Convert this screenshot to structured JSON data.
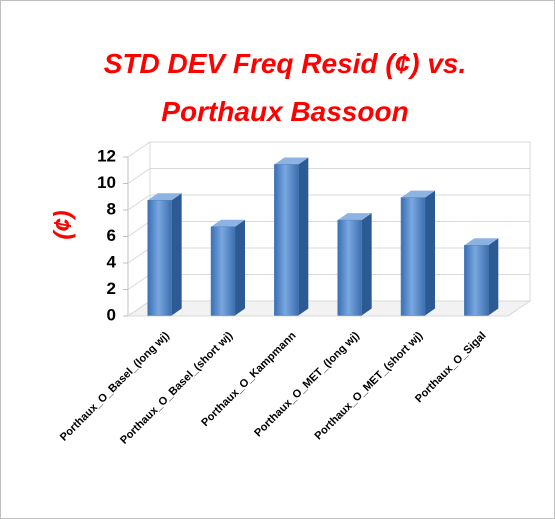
{
  "chart_data": {
    "type": "bar3d",
    "title": "STD DEV Freq Resid (¢) vs. Porthaux Bassoon",
    "y_label": "(¢)",
    "categories": [
      "Porthaux_O_Basel_(long wj)",
      "Porthaux_O_Basel_(short wj)",
      "Porthaux_O_Kampmann",
      "Porthaux_O_MET_(long wj)",
      "Porthaux_O_MET_(short wj)",
      "Porthaux_O_Sigal"
    ],
    "values": [
      8.7,
      6.7,
      11.4,
      7.2,
      8.9,
      5.3
    ],
    "color": "#4f81bd",
    "ylim": [
      0,
      12
    ],
    "yticks": [
      0,
      2,
      4,
      6,
      8,
      10,
      12
    ],
    "grid": true
  }
}
